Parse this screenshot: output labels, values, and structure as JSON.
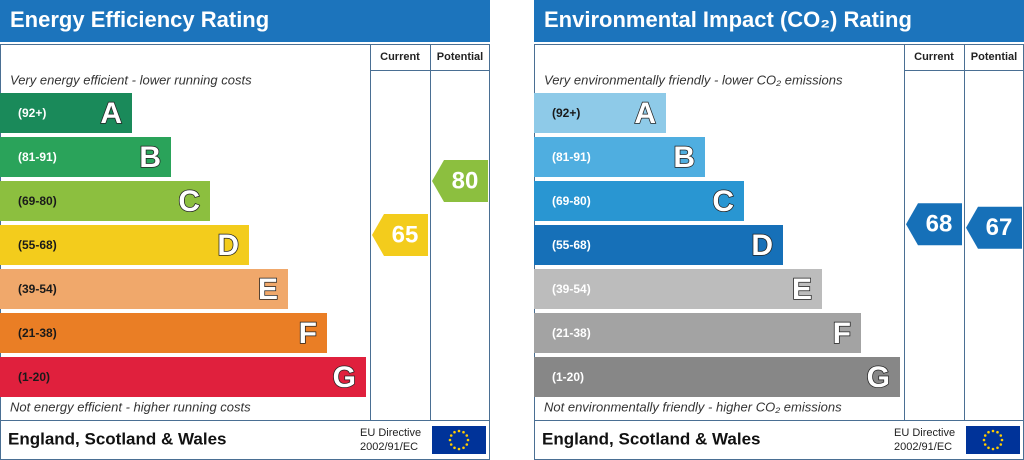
{
  "panels": [
    {
      "title": "Energy Efficiency Rating",
      "columns": [
        "Current",
        "Potential"
      ],
      "top_note": "Very energy efficient - lower running costs",
      "bottom_note": "Not energy efficient - higher running costs",
      "bands": [
        {
          "range": "(92+)",
          "letter": "A",
          "color": "#1a8a5a",
          "label_color": "#ffffff"
        },
        {
          "range": "(81-91)",
          "letter": "B",
          "color": "#2aa35a",
          "label_color": "#ffffff"
        },
        {
          "range": "(69-80)",
          "letter": "C",
          "color": "#8cbf3f",
          "label_color": "#1a1a1a"
        },
        {
          "range": "(55-68)",
          "letter": "D",
          "color": "#f3cc1c",
          "label_color": "#1a1a1a"
        },
        {
          "range": "(39-54)",
          "letter": "E",
          "color": "#f0a86b",
          "label_color": "#1a1a1a"
        },
        {
          "range": "(21-38)",
          "letter": "F",
          "color": "#ea7e25",
          "label_color": "#1a1a1a"
        },
        {
          "range": "(1-20)",
          "letter": "G",
          "color": "#e0203d",
          "label_color": "#1a1a1a"
        }
      ],
      "current": {
        "value": 65,
        "color": "#f3cc1c"
      },
      "potential": {
        "value": 80,
        "color": "#8cbf3f"
      },
      "footer": "England, Scotland & Wales",
      "directive": [
        "EU Directive",
        "2002/91/EC"
      ]
    },
    {
      "title": "Environmental Impact (CO₂) Rating",
      "columns": [
        "Current",
        "Potential"
      ],
      "top_note": "Very environmentally friendly - lower CO₂ emissions",
      "bottom_note": "Not environmentally friendly - higher CO₂ emissions",
      "bands": [
        {
          "range": "(92+)",
          "letter": "A",
          "color": "#8ecae8",
          "label_color": "#1a1a1a"
        },
        {
          "range": "(81-91)",
          "letter": "B",
          "color": "#4faee0",
          "label_color": "#ffffff"
        },
        {
          "range": "(69-80)",
          "letter": "C",
          "color": "#2996d2",
          "label_color": "#ffffff"
        },
        {
          "range": "(55-68)",
          "letter": "D",
          "color": "#1670b8",
          "label_color": "#ffffff"
        },
        {
          "range": "(39-54)",
          "letter": "E",
          "color": "#bcbcbc",
          "label_color": "#ffffff"
        },
        {
          "range": "(21-38)",
          "letter": "F",
          "color": "#a3a3a3",
          "label_color": "#ffffff"
        },
        {
          "range": "(1-20)",
          "letter": "G",
          "color": "#878787",
          "label_color": "#ffffff"
        }
      ],
      "current": {
        "value": 68,
        "color": "#1670b8"
      },
      "potential": {
        "value": 67,
        "color": "#1670b8"
      },
      "footer": "England, Scotland & Wales",
      "directive": [
        "EU Directive",
        "2002/91/EC"
      ]
    }
  ]
}
